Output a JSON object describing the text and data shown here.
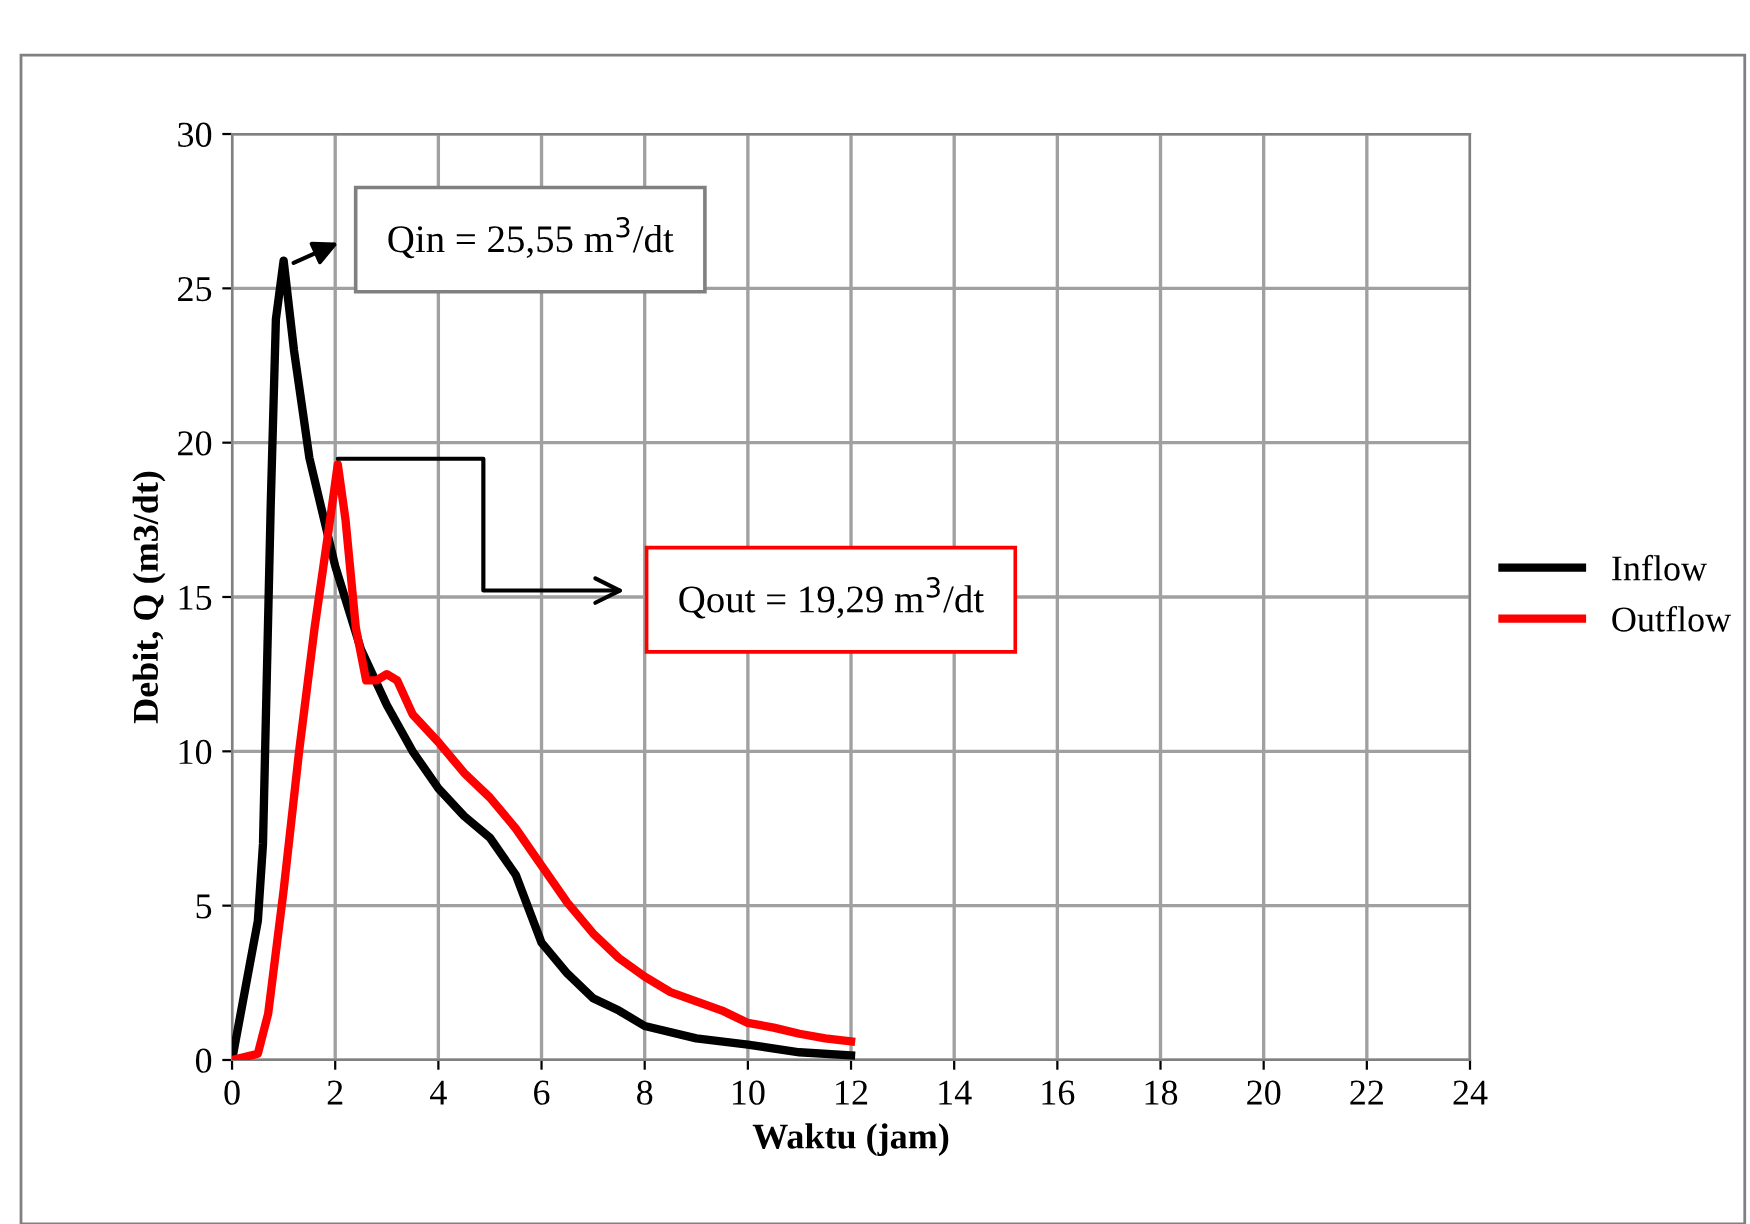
{
  "chart_data": {
    "type": "line",
    "xlabel": "Waktu (jam)",
    "ylabel": "Debit, Q (m3/dt)",
    "series": [
      {
        "name": "Inflow",
        "color": "#000000",
        "x": [
          0,
          0.5,
          0.6,
          0.75,
          0.85,
          1.0,
          1.2,
          1.5,
          2,
          2.5,
          3,
          3.5,
          4,
          4.5,
          5,
          5.5,
          6,
          6.5,
          7,
          7.5,
          8,
          9,
          10,
          11,
          12
        ],
        "values": [
          0,
          4.5,
          7,
          18,
          24,
          25.9,
          23,
          19.5,
          16,
          13.3,
          11.5,
          10,
          8.8,
          7.9,
          7.2,
          6,
          3.8,
          2.8,
          2.0,
          1.6,
          1.1,
          0.7,
          0.5,
          0.25,
          0.15
        ]
      },
      {
        "name": "Outflow",
        "color": "#ff0000",
        "x": [
          0,
          0.5,
          0.7,
          1.0,
          1.3,
          1.6,
          1.9,
          2.05,
          2.2,
          2.4,
          2.6,
          2.8,
          3.0,
          3.2,
          3.5,
          4,
          4.5,
          5,
          5.5,
          6,
          6.5,
          7,
          7.5,
          8,
          8.5,
          9,
          9.5,
          10,
          10.5,
          11,
          11.5,
          12
        ],
        "values": [
          0,
          0.2,
          1.5,
          5.5,
          10,
          14,
          17.5,
          19.3,
          17.5,
          14,
          12.3,
          12.3,
          12.5,
          12.3,
          11.2,
          10.3,
          9.3,
          8.5,
          7.5,
          6.3,
          5.1,
          4.1,
          3.3,
          2.7,
          2.2,
          1.9,
          1.6,
          1.2,
          1.05,
          0.85,
          0.7,
          0.6
        ]
      }
    ],
    "xlim": [
      0,
      24
    ],
    "xticks": [
      0,
      2,
      4,
      6,
      8,
      10,
      12,
      14,
      16,
      18,
      20,
      22,
      24
    ],
    "ylim": [
      0,
      30
    ],
    "yticks": [
      0,
      5,
      10,
      15,
      20,
      25,
      30
    ],
    "grid": true,
    "legend": "right",
    "marker": "none",
    "line_style": "solid",
    "annotations": [
      "Qin = 25,55 m$^{3}$/dt",
      "Qout = 19,29 m$^{3}$/dt"
    ]
  }
}
